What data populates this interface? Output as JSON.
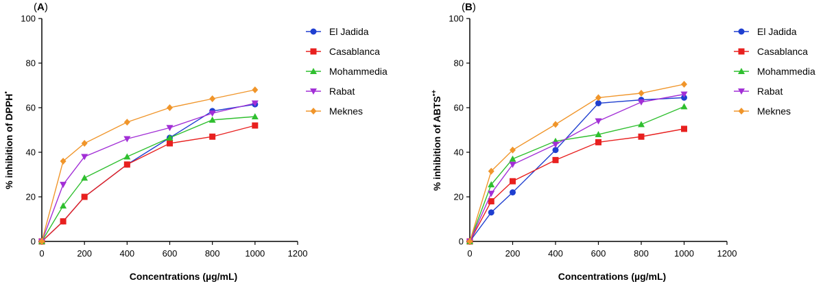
{
  "chart_data": [
    {
      "type": "line",
      "panel_label": "(A)",
      "panel_label_parts": [
        "(",
        "A",
        ")"
      ],
      "title": "",
      "xlabel": "Concentrations (µg/mL)",
      "ylabel": "% inhibition of DPPH",
      "ylabel_superscript": "•",
      "xlim": [
        0,
        1200
      ],
      "ylim": [
        0,
        100
      ],
      "xticks": [
        0,
        200,
        400,
        600,
        800,
        1000,
        1200
      ],
      "yticks": [
        0,
        20,
        40,
        60,
        80,
        100
      ],
      "x": [
        0,
        100,
        200,
        400,
        600,
        800,
        1000
      ],
      "legend_position": "right",
      "series": [
        {
          "name": "El Jadida",
          "color": "#1f3fd0",
          "marker": "circle",
          "values": [
            0,
            9,
            20,
            34.5,
            46.5,
            58.5,
            61.5
          ]
        },
        {
          "name": "Casablanca",
          "color": "#e8201f",
          "marker": "square",
          "values": [
            0,
            9,
            20,
            34.5,
            44,
            47,
            52
          ]
        },
        {
          "name": "Mohammedia",
          "color": "#2fbf2f",
          "marker": "triangle-up",
          "values": [
            0,
            16,
            28.5,
            38,
            46.5,
            54.5,
            56
          ]
        },
        {
          "name": "Rabat",
          "color": "#a22fd6",
          "marker": "triangle-down",
          "values": [
            0,
            25.5,
            38,
            46,
            51,
            57.5,
            62
          ]
        },
        {
          "name": "Meknes",
          "color": "#f0952a",
          "marker": "diamond",
          "values": [
            0,
            36,
            44,
            53.5,
            60,
            64,
            68
          ]
        }
      ]
    },
    {
      "type": "line",
      "panel_label": "(B)",
      "panel_label_parts": [
        "(",
        "B",
        ")"
      ],
      "title": "",
      "xlabel": "Concentrations (µg/mL)",
      "ylabel": "% inhibition of ABTS",
      "ylabel_superscript": "•+",
      "xlim": [
        0,
        1200
      ],
      "ylim": [
        0,
        100
      ],
      "xticks": [
        0,
        200,
        400,
        600,
        800,
        1000,
        1200
      ],
      "yticks": [
        0,
        20,
        40,
        60,
        80,
        100
      ],
      "x": [
        0,
        100,
        200,
        400,
        600,
        800,
        1000
      ],
      "legend_position": "right",
      "series": [
        {
          "name": "El Jadida",
          "color": "#1f3fd0",
          "marker": "circle",
          "values": [
            0,
            13,
            22,
            41,
            62,
            63.5,
            64.5
          ]
        },
        {
          "name": "Casablanca",
          "color": "#e8201f",
          "marker": "square",
          "values": [
            0,
            18,
            27,
            36.5,
            44.5,
            47,
            50.5
          ]
        },
        {
          "name": "Mohammedia",
          "color": "#2fbf2f",
          "marker": "triangle-up",
          "values": [
            0,
            25.5,
            37,
            45,
            48,
            52.5,
            60.5
          ]
        },
        {
          "name": "Rabat",
          "color": "#a22fd6",
          "marker": "triangle-down",
          "values": [
            0,
            21.5,
            34.5,
            43.5,
            54,
            62.5,
            66
          ]
        },
        {
          "name": "Meknes",
          "color": "#f0952a",
          "marker": "diamond",
          "values": [
            0,
            31.5,
            41,
            52.5,
            64.5,
            66.5,
            70.5
          ]
        }
      ]
    }
  ]
}
